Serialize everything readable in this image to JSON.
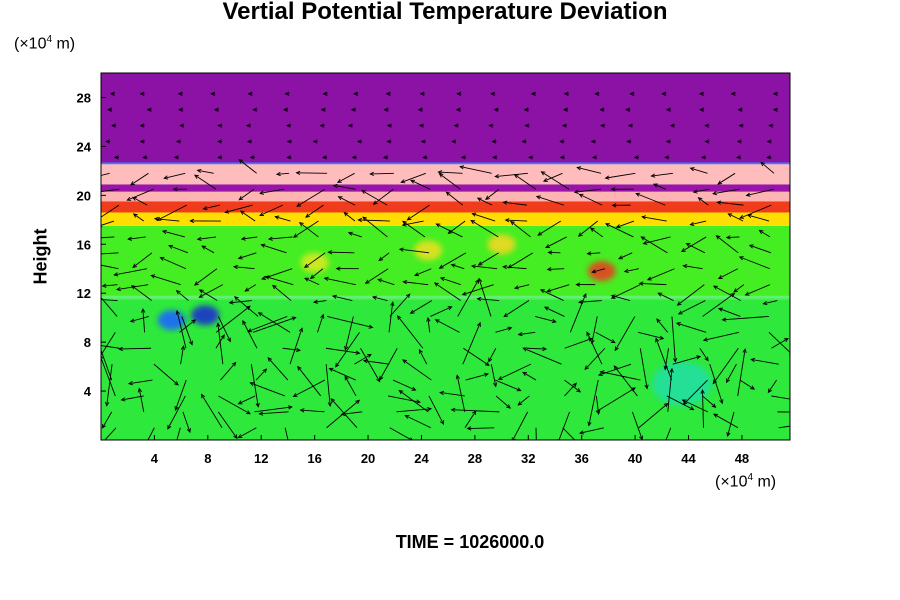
{
  "chart_data": {
    "type": "heatmap",
    "title": "Vertial Potential Temperature Deviation",
    "ylabel": "Height",
    "xlabel": "",
    "x_unit": {
      "prefix": "(×10",
      "exp": "4",
      "suffix": " m)"
    },
    "y_unit": {
      "prefix": "(×10",
      "exp": "4",
      "suffix": " m)"
    },
    "footer": "TIME = 1026000.0",
    "xlim": [
      0,
      51.6
    ],
    "ylim": [
      0,
      30
    ],
    "x_ticks": [
      4,
      8,
      12,
      16,
      20,
      24,
      28,
      32,
      36,
      40,
      44,
      48
    ],
    "y_ticks": [
      4,
      8,
      12,
      16,
      20,
      24,
      28
    ],
    "layers": [
      {
        "name": "background-field",
        "y_from": 0,
        "y_to": 11.5,
        "color": "#2ee83b"
      },
      {
        "name": "mid-field",
        "y_from": 11.5,
        "y_to": 17.5,
        "color": "#44ee22"
      },
      {
        "name": "warm-band",
        "y_from": 17.5,
        "y_to": 19.5,
        "color": "#ffdd00"
      },
      {
        "name": "hot-band",
        "y_from": 18.6,
        "y_to": 19.7,
        "color": "#f03c1c"
      },
      {
        "name": "pink-layer-low",
        "y_from": 19.5,
        "y_to": 20.3,
        "color": "#ffb4b4"
      },
      {
        "name": "purple-stripe",
        "y_from": 20.3,
        "y_to": 20.9,
        "color": "#9a14a8"
      },
      {
        "name": "pink-layer-high",
        "y_from": 20.9,
        "y_to": 22.6,
        "color": "#ffbcbc"
      },
      {
        "name": "cold-top",
        "y_from": 22.6,
        "y_to": 30,
        "color": "#8c12a6"
      }
    ],
    "features": [
      {
        "name": "blue-vortex",
        "x": 5.3,
        "y": 9.8,
        "color": "#1a66ff"
      },
      {
        "name": "blue-vortex",
        "x": 7.8,
        "y": 10.2,
        "color": "#1a33cc"
      },
      {
        "name": "cyan-patch",
        "x": 43.5,
        "y": 4.6,
        "color": "#22e0a0"
      },
      {
        "name": "red-plume",
        "x": 37.5,
        "y": 13.8,
        "color": "#e84020"
      },
      {
        "name": "yellow-patch",
        "x": 16,
        "y": 14.5,
        "color": "#d8e820"
      },
      {
        "name": "yellow-patch",
        "x": 24.5,
        "y": 15.5,
        "color": "#e8e020"
      },
      {
        "name": "yellow-patch",
        "x": 30,
        "y": 16,
        "color": "#f0d820"
      }
    ]
  }
}
